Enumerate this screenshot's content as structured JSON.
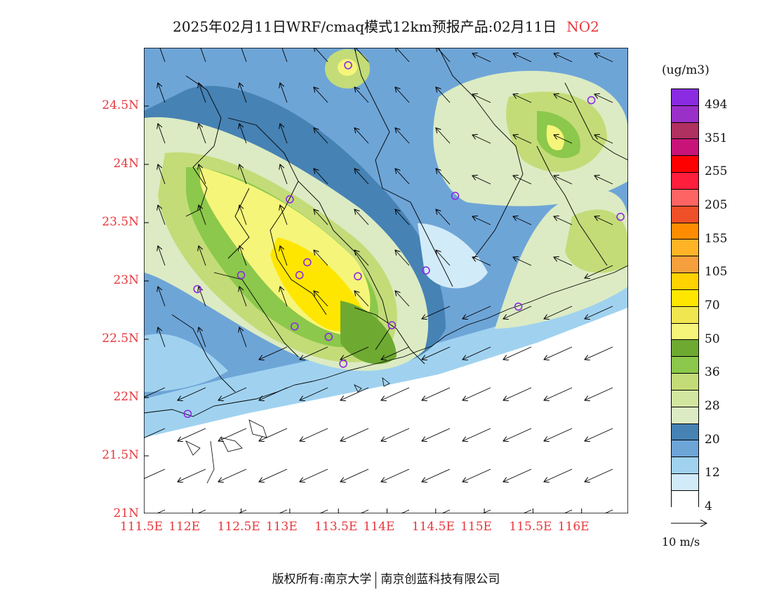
{
  "title": "2025年02月11日WRF/cmaq模式12km预报产品:02月11日",
  "pollutant": "NO2",
  "units": "(ug/m3)",
  "lat_labels": [
    "24.5N",
    "24N",
    "23.5N",
    "23N",
    "22.5N",
    "22N",
    "21.5N",
    "21N"
  ],
  "lon_labels": [
    "111.5E",
    "112E",
    "112.5E",
    "113E",
    "113.5E",
    "114E",
    "114.5E",
    "115E",
    "115.5E",
    "116E"
  ],
  "colorbar": {
    "levels": [
      "494",
      "351",
      "255",
      "205",
      "155",
      "105",
      "70",
      "50",
      "36",
      "28",
      "20",
      "12",
      "4"
    ],
    "colors": [
      "#8a2be2",
      "#9b30c8",
      "#b03060",
      "#c81478",
      "#ff0000",
      "#ff1e3c",
      "#ff6464",
      "#f05028",
      "#ff8c00",
      "#ffb428",
      "#f5a03c",
      "#ffd200",
      "#ffe600",
      "#f0e650",
      "#f5f57a",
      "#6eaa32",
      "#8cc84b",
      "#c3dc78",
      "#d2e6a0",
      "#dcebc3",
      "#4682b4",
      "#6ea5d7",
      "#a0d2f0",
      "#d2ebf8",
      "#ffffff"
    ]
  },
  "markers": [
    {
      "lon": 113.6,
      "lat": 24.85
    },
    {
      "lon": 116.1,
      "lat": 24.55
    },
    {
      "lon": 114.7,
      "lat": 23.73
    },
    {
      "lon": 113.0,
      "lat": 23.7
    },
    {
      "lon": 116.4,
      "lat": 23.55
    },
    {
      "lon": 113.18,
      "lat": 23.16
    },
    {
      "lon": 113.1,
      "lat": 23.05
    },
    {
      "lon": 113.7,
      "lat": 23.04
    },
    {
      "lon": 112.5,
      "lat": 23.05
    },
    {
      "lon": 114.4,
      "lat": 23.09
    },
    {
      "lon": 112.05,
      "lat": 22.93
    },
    {
      "lon": 115.35,
      "lat": 22.78
    },
    {
      "lon": 113.05,
      "lat": 22.61
    },
    {
      "lon": 114.05,
      "lat": 22.62
    },
    {
      "lon": 113.4,
      "lat": 22.52
    },
    {
      "lon": 113.55,
      "lat": 22.29
    },
    {
      "lon": 111.95,
      "lat": 21.86
    }
  ],
  "ref_vector": "10 m/s",
  "footer_left": "版权所有:南京大学",
  "footer_right": "南京创蓝科技有限公司"
}
